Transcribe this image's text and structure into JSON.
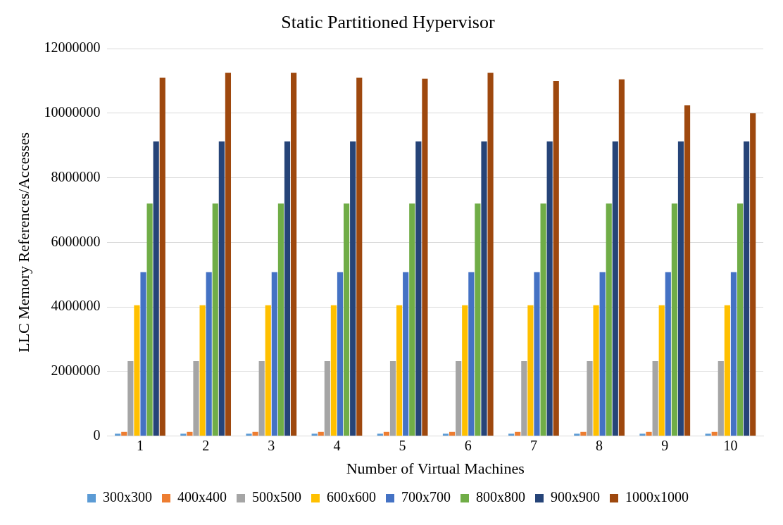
{
  "chart_data": {
    "type": "bar",
    "title": "Static Partitioned Hypervisor",
    "xlabel": "Number of Virtual Machines",
    "ylabel": "LLC Memory References/Accesses",
    "categories": [
      "1",
      "2",
      "3",
      "4",
      "5",
      "6",
      "7",
      "8",
      "9",
      "10"
    ],
    "series": [
      {
        "name": "300x300",
        "color": "#5b9bd5",
        "values": [
          75000,
          75000,
          75000,
          75000,
          75000,
          75000,
          75000,
          75000,
          75000,
          75000
        ]
      },
      {
        "name": "400x400",
        "color": "#ed7d31",
        "values": [
          125000,
          125000,
          125000,
          125000,
          125000,
          125000,
          125000,
          125000,
          125000,
          125000
        ]
      },
      {
        "name": "500x500",
        "color": "#a5a5a5",
        "values": [
          2325000,
          2325000,
          2325000,
          2325000,
          2325000,
          2325000,
          2325000,
          2325000,
          2325000,
          2325000
        ]
      },
      {
        "name": "600x600",
        "color": "#ffc000",
        "values": [
          4050000,
          4050000,
          4050000,
          4050000,
          4050000,
          4050000,
          4050000,
          4050000,
          4050000,
          4050000
        ]
      },
      {
        "name": "700x700",
        "color": "#4472c4",
        "values": [
          5075000,
          5075000,
          5075000,
          5075000,
          5075000,
          5075000,
          5075000,
          5075000,
          5075000,
          5075000
        ]
      },
      {
        "name": "800x800",
        "color": "#70ad47",
        "values": [
          7200000,
          7200000,
          7200000,
          7200000,
          7200000,
          7200000,
          7200000,
          7200000,
          7200000,
          7200000
        ]
      },
      {
        "name": "900x900",
        "color": "#264478",
        "values": [
          9125000,
          9125000,
          9125000,
          9125000,
          9125000,
          9125000,
          9125000,
          9125000,
          9125000,
          9125000
        ]
      },
      {
        "name": "1000x1000",
        "color": "#9e480e",
        "values": [
          11100000,
          11250000,
          11250000,
          11100000,
          11075000,
          11250000,
          11000000,
          11050000,
          10250000,
          10000000
        ]
      }
    ],
    "ylim": [
      0,
      12000000
    ],
    "yticks": [
      0,
      2000000,
      4000000,
      6000000,
      8000000,
      10000000,
      12000000
    ],
    "grid": "y",
    "legend": "bottom"
  }
}
